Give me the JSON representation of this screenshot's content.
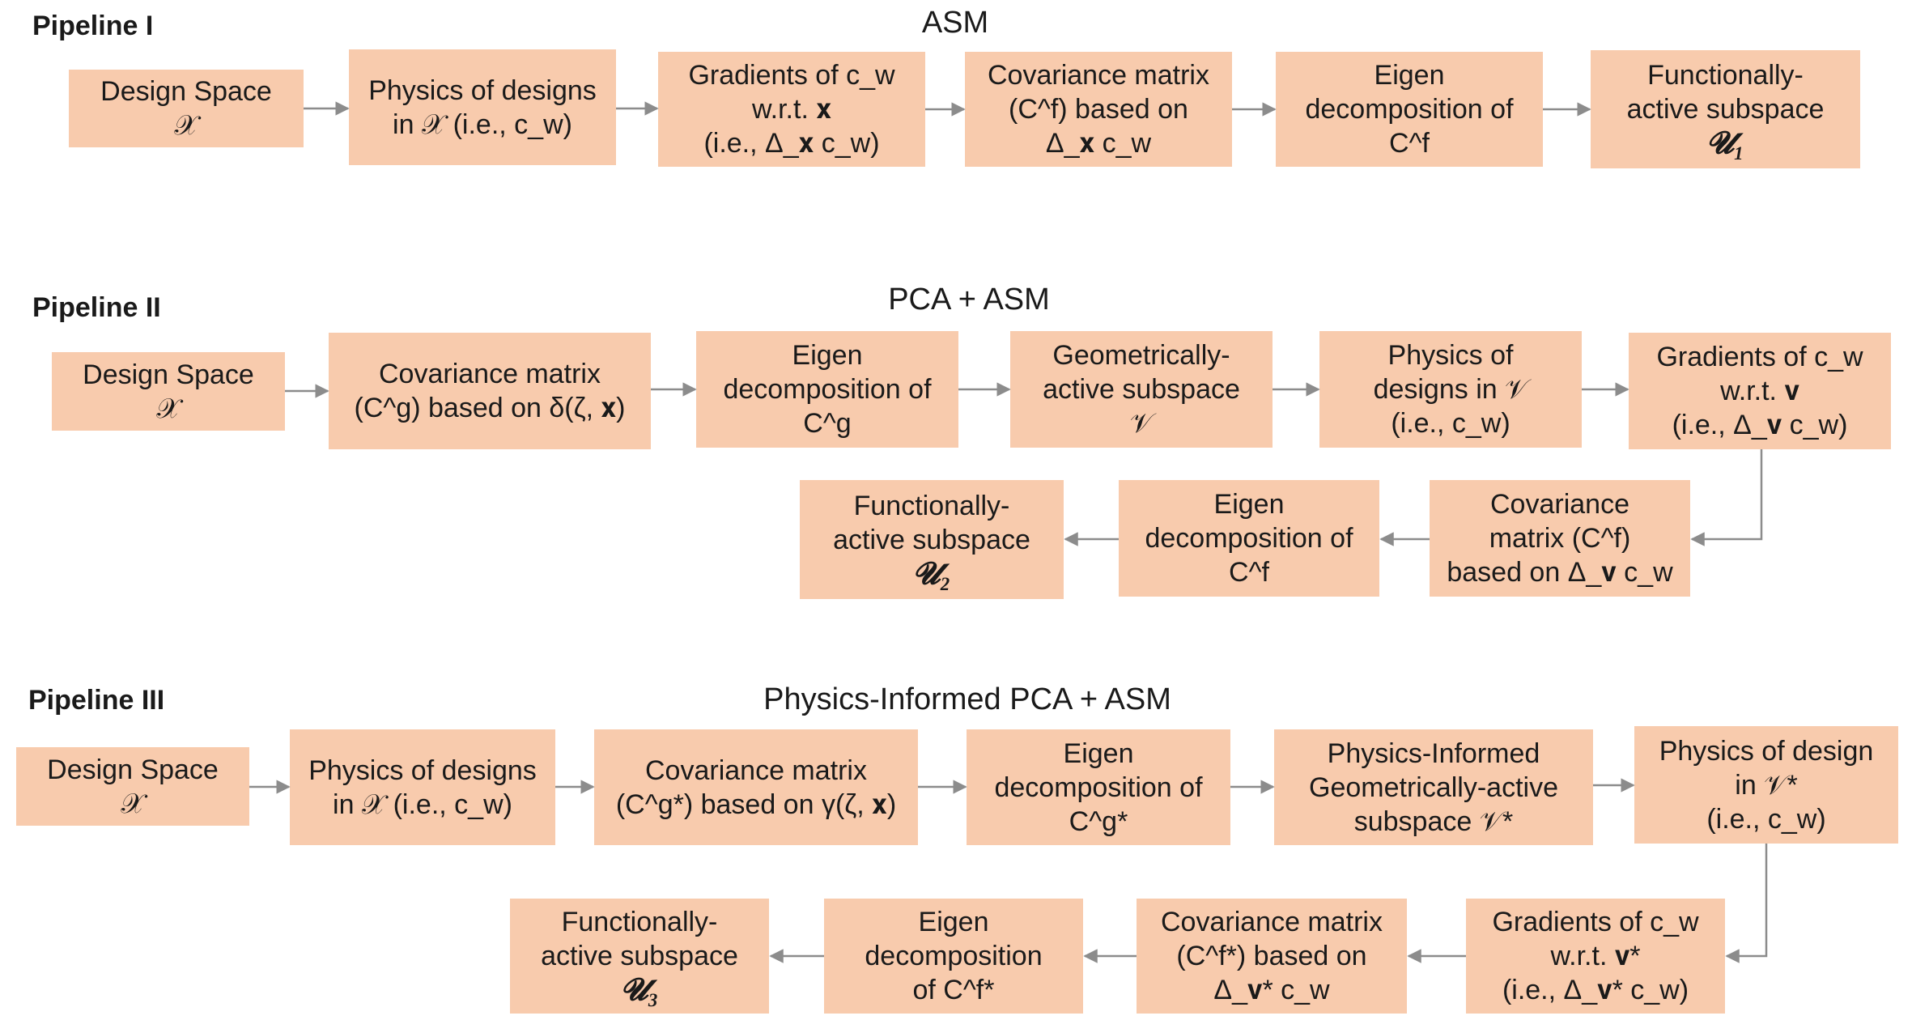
{
  "pipelines": [
    {
      "label": "Pipeline I",
      "title": "ASM",
      "boxes": [
        {
          "id": "p1-design-space",
          "lines": [
            "Design Space",
            "𝒳"
          ]
        },
        {
          "id": "p1-physics",
          "lines": [
            "Physics of designs",
            "in 𝒳 (i.e., c_w)"
          ]
        },
        {
          "id": "p1-gradients",
          "lines": [
            "Gradients of c_w",
            "w.r.t. 𝐱",
            "(i.e., Δ_𝐱 c_w)"
          ]
        },
        {
          "id": "p1-covariance",
          "lines": [
            "Covariance matrix",
            "(C^f) based on",
            "Δ_𝐱 c_w"
          ]
        },
        {
          "id": "p1-eigen",
          "lines": [
            "Eigen",
            "decomposition of",
            "C^f"
          ]
        },
        {
          "id": "p1-functional",
          "lines": [
            "Functionally-",
            "active subspace",
            "𝓤₁"
          ]
        }
      ]
    },
    {
      "label": "Pipeline II",
      "title": "PCA + ASM",
      "boxes": [
        {
          "id": "p2-design-space",
          "lines": [
            "Design Space",
            "𝒳"
          ]
        },
        {
          "id": "p2-covariance-g",
          "lines": [
            "Covariance matrix",
            "(C^g) based on δ(ζ, 𝐱)"
          ]
        },
        {
          "id": "p2-eigen-g",
          "lines": [
            "Eigen",
            "decomposition of",
            "C^g"
          ]
        },
        {
          "id": "p2-geometric",
          "lines": [
            "Geometrically-",
            "active subspace",
            "𝒱"
          ]
        },
        {
          "id": "p2-physics",
          "lines": [
            "Physics of",
            "designs in 𝒱",
            "(i.e., c_w)"
          ]
        },
        {
          "id": "p2-gradients",
          "lines": [
            "Gradients of c_w",
            "w.r.t. 𝐯",
            "(i.e., Δ_𝐯 c_w)"
          ]
        },
        {
          "id": "p2-covariance-f",
          "lines": [
            "Covariance",
            "matrix (C^f)",
            "based on Δ_𝐯 c_w"
          ]
        },
        {
          "id": "p2-eigen-f",
          "lines": [
            "Eigen",
            "decomposition of",
            "C^f"
          ]
        },
        {
          "id": "p2-functional",
          "lines": [
            "Functionally-",
            "active subspace",
            "𝓤₂"
          ]
        }
      ]
    },
    {
      "label": "Pipeline III",
      "title": "Physics-Informed PCA + ASM",
      "boxes": [
        {
          "id": "p3-design-space",
          "lines": [
            "Design Space",
            "𝒳"
          ]
        },
        {
          "id": "p3-physics",
          "lines": [
            "Physics of designs",
            "in 𝒳 (i.e., c_w)"
          ]
        },
        {
          "id": "p3-covariance-g",
          "lines": [
            "Covariance matrix",
            "(C^g*) based on γ(ζ, 𝐱)"
          ]
        },
        {
          "id": "p3-eigen-g",
          "lines": [
            "Eigen",
            "decomposition of",
            "C^g*"
          ]
        },
        {
          "id": "p3-pi-geometric",
          "lines": [
            "Physics-Informed",
            "Geometrically-active",
            "subspace 𝒱*"
          ]
        },
        {
          "id": "p3-physics-v",
          "lines": [
            "Physics of design",
            "in 𝒱*",
            "(i.e., c_w)"
          ]
        },
        {
          "id": "p3-gradients",
          "lines": [
            "Gradients of c_w",
            "w.r.t. 𝐯*",
            "(i.e., Δ_𝐯* c_w)"
          ]
        },
        {
          "id": "p3-covariance-f",
          "lines": [
            "Covariance matrix",
            "(C^f*) based on",
            "Δ_𝐯* c_w"
          ]
        },
        {
          "id": "p3-eigen-f",
          "lines": [
            "Eigen",
            "decomposition",
            "of C^f*"
          ]
        },
        {
          "id": "p3-functional",
          "lines": [
            "Functionally-",
            "active subspace",
            "𝓤₃"
          ]
        }
      ]
    }
  ],
  "colors": {
    "box_fill": "#f8cbad",
    "arrow": "#8c8c8c",
    "text": "#1a1a1a"
  }
}
